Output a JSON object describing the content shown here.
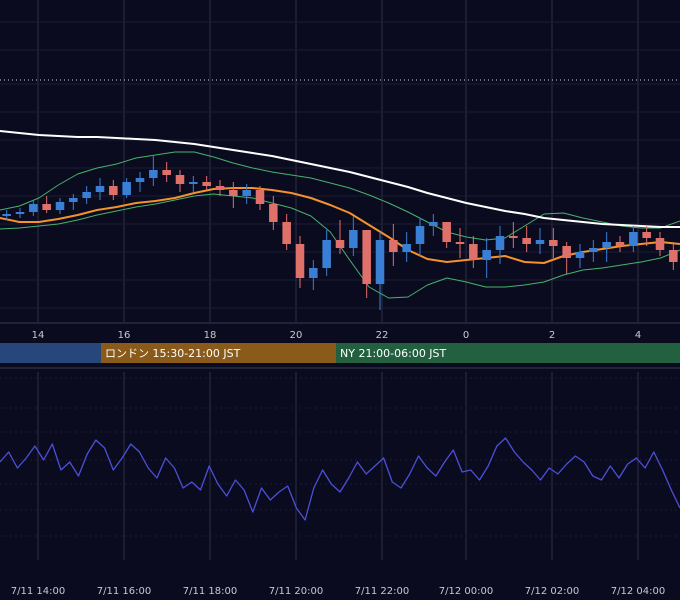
{
  "chart_data": [
    {
      "type": "candlestick",
      "panel": "price",
      "x_ticks": [
        "14",
        "16",
        "18",
        "20",
        "22",
        "0",
        "2",
        "4"
      ],
      "colors": {
        "up": "#3a7fd6",
        "down": "#e0706a",
        "sma_long": "#ffffff",
        "sma_mid": "#f5922a",
        "bands": "#46b36b",
        "grid": "#2c2c44",
        "dotted_level": "#c8c8d4"
      },
      "overlays": [
        {
          "kind": "sma_long",
          "values": [
            131,
            133,
            135,
            136,
            137,
            137,
            138,
            139,
            140,
            142,
            144,
            147,
            150,
            153,
            156,
            160,
            164,
            168,
            172,
            177,
            182,
            187,
            193,
            198,
            203,
            207,
            211,
            214,
            218,
            220,
            222,
            224,
            225,
            226,
            227,
            227
          ]
        },
        {
          "kind": "sma_mid",
          "values": [
            218,
            222,
            222,
            219,
            215,
            210,
            207,
            203,
            201,
            198,
            193,
            189,
            188,
            188,
            190,
            193,
            198,
            205,
            213,
            225,
            237,
            250,
            259,
            262,
            260,
            258,
            256,
            262,
            263,
            256,
            252,
            249,
            246,
            244,
            242,
            244
          ]
        },
        {
          "kind": "band_upper",
          "values": [
            210,
            206,
            198,
            185,
            174,
            168,
            164,
            158,
            155,
            152,
            152,
            157,
            163,
            168,
            172,
            175,
            178,
            183,
            188,
            195,
            203,
            212,
            222,
            232,
            237,
            240,
            238,
            226,
            214,
            213,
            218,
            222,
            226,
            228,
            228,
            221
          ]
        },
        {
          "kind": "band_lower",
          "values": [
            229,
            228,
            226,
            224,
            220,
            215,
            211,
            207,
            204,
            200,
            196,
            194,
            196,
            198,
            203,
            208,
            216,
            232,
            260,
            287,
            298,
            297,
            285,
            278,
            282,
            287,
            287,
            285,
            282,
            275,
            270,
            268,
            265,
            262,
            258,
            250
          ]
        }
      ],
      "candles_ohlc": [
        [
          216,
          210,
          220,
          214
        ],
        [
          214,
          208,
          218,
          212
        ],
        [
          212,
          200,
          216,
          204
        ],
        [
          204,
          196,
          213,
          210
        ],
        [
          210,
          198,
          214,
          202
        ],
        [
          202,
          194,
          210,
          198
        ],
        [
          198,
          186,
          204,
          192
        ],
        [
          192,
          178,
          200,
          186
        ],
        [
          186,
          180,
          200,
          195
        ],
        [
          195,
          178,
          198,
          182
        ],
        [
          182,
          172,
          192,
          178
        ],
        [
          178,
          156,
          186,
          170
        ],
        [
          170,
          162,
          182,
          175
        ],
        [
          175,
          170,
          192,
          184
        ],
        [
          184,
          176,
          192,
          182
        ],
        [
          182,
          176,
          190,
          186
        ],
        [
          186,
          180,
          196,
          190
        ],
        [
          190,
          182,
          208,
          196
        ],
        [
          196,
          184,
          204,
          190
        ],
        [
          190,
          186,
          210,
          204
        ],
        [
          204,
          196,
          230,
          222
        ],
        [
          222,
          214,
          250,
          244
        ],
        [
          244,
          236,
          288,
          278
        ],
        [
          278,
          260,
          290,
          268
        ],
        [
          268,
          230,
          276,
          240
        ],
        [
          240,
          220,
          254,
          248
        ],
        [
          248,
          216,
          256,
          230
        ],
        [
          230,
          236,
          298,
          284
        ],
        [
          284,
          232,
          310,
          240
        ],
        [
          240,
          224,
          266,
          252
        ],
        [
          252,
          232,
          262,
          244
        ],
        [
          244,
          218,
          256,
          226
        ],
        [
          226,
          214,
          236,
          222
        ],
        [
          222,
          224,
          248,
          242
        ],
        [
          242,
          228,
          258,
          244
        ],
        [
          244,
          236,
          268,
          260
        ],
        [
          260,
          238,
          278,
          250
        ],
        [
          250,
          226,
          264,
          236
        ],
        [
          236,
          222,
          248,
          238
        ],
        [
          238,
          226,
          252,
          244
        ],
        [
          244,
          228,
          254,
          240
        ],
        [
          240,
          228,
          258,
          246
        ],
        [
          246,
          242,
          274,
          258
        ],
        [
          258,
          244,
          268,
          252
        ],
        [
          252,
          240,
          262,
          248
        ],
        [
          248,
          232,
          262,
          242
        ],
        [
          242,
          236,
          252,
          246
        ],
        [
          246,
          226,
          252,
          232
        ],
        [
          232,
          226,
          246,
          238
        ],
        [
          238,
          232,
          256,
          250
        ],
        [
          250,
          242,
          270,
          262
        ]
      ],
      "sessions": [
        {
          "label": "",
          "color": "#27477a"
        },
        {
          "label": "ロンドン 15:30-21:00 JST",
          "color": "#8a5a1a"
        },
        {
          "label": "NY 21:00-06:00 JST",
          "color": "#23603f"
        }
      ]
    },
    {
      "type": "line",
      "panel": "oscillator",
      "x_ticks": [
        "7/11 14:00",
        "7/11 16:00",
        "7/11 18:00",
        "7/11 20:00",
        "7/11 22:00",
        "7/12 00:00",
        "7/12 02:00",
        "7/12 04:00"
      ],
      "color": "#4b50d8",
      "values": [
        462,
        452,
        468,
        458,
        446,
        460,
        444,
        470,
        462,
        476,
        454,
        440,
        448,
        470,
        458,
        444,
        452,
        468,
        478,
        458,
        468,
        488,
        482,
        490,
        466,
        484,
        496,
        480,
        490,
        512,
        488,
        500,
        492,
        486,
        508,
        520,
        488,
        470,
        484,
        492,
        478,
        462,
        474,
        466,
        458,
        482,
        488,
        474,
        456,
        468,
        476,
        462,
        450,
        472,
        470,
        480,
        466,
        446,
        438,
        452,
        462,
        470,
        480,
        468,
        474,
        464,
        456,
        462,
        476,
        480,
        466,
        478,
        464,
        458,
        468,
        452,
        470,
        490,
        508
      ]
    }
  ]
}
